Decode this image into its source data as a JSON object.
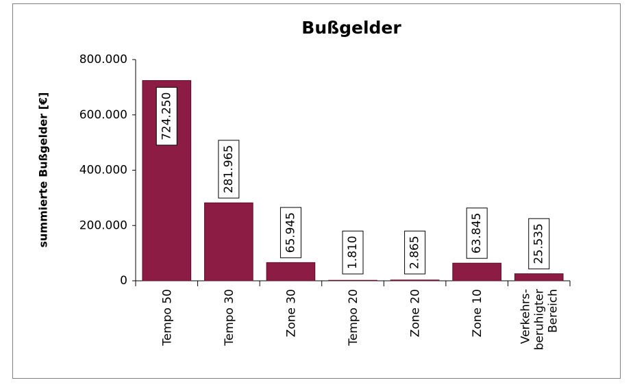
{
  "chart_data": {
    "type": "bar",
    "title": "Bußgelder",
    "y_label": "summierte Bußgelder [€]",
    "categories": [
      "Tempo 50",
      "Tempo 30",
      "Zone 30",
      "Tempo 20",
      "Zone 20",
      "Zone 10",
      "Verkehrs-\nberuhigter\nBereich"
    ],
    "values": [
      724250,
      281965,
      65945,
      1810,
      2865,
      63845,
      25535
    ],
    "value_labels": [
      "724.250",
      "281.965",
      "65.945",
      "1.810",
      "2.865",
      "63.845",
      "25.535"
    ],
    "color": "#8c1c44",
    "ylim": [
      0,
      800000
    ],
    "yticks": [
      0,
      {
        "value": 200000,
        "label": "200.000"
      },
      {
        "value": 400000,
        "label": "400.000"
      },
      {
        "value": 600000,
        "label": "600.000"
      },
      {
        "value": 800000,
        "label": "800.000"
      }
    ],
    "grid": false
  }
}
